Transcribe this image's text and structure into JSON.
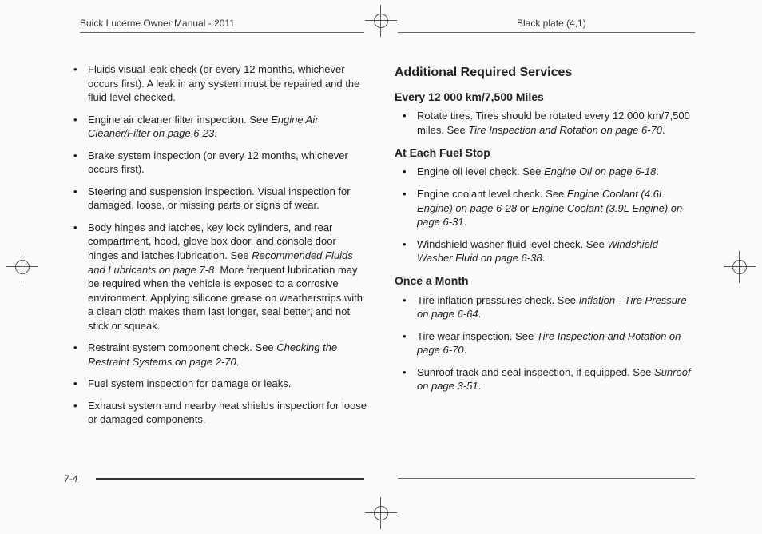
{
  "header": {
    "left": "Buick Lucerne Owner Manual - 2011",
    "right": "Black plate (4,1)"
  },
  "page_number": "7-4",
  "left_column": {
    "items": [
      {
        "segments": [
          {
            "t": "Fluids visual leak check (or every 12 months, whichever occurs first). A leak in any system must be repaired and the fluid level checked."
          }
        ]
      },
      {
        "segments": [
          {
            "t": "Engine air cleaner filter inspection. See "
          },
          {
            "t": "Engine Air Cleaner/Filter on page 6‑23",
            "i": true
          },
          {
            "t": "."
          }
        ]
      },
      {
        "segments": [
          {
            "t": "Brake system inspection (or every 12 months, whichever occurs first)."
          }
        ]
      },
      {
        "segments": [
          {
            "t": "Steering and suspension inspection. Visual inspection for damaged, loose, or missing parts or signs of wear."
          }
        ]
      },
      {
        "segments": [
          {
            "t": "Body hinges and latches, key lock cylinders, and rear compartment, hood, glove box door, and console door hinges and latches lubrication. See "
          },
          {
            "t": "Recommended Fluids and Lubricants on page 7‑8",
            "i": true
          },
          {
            "t": ". More frequent lubrication may be required when the vehicle is exposed to a corrosive environment. Applying silicone grease on weatherstrips with a clean cloth makes them last longer, seal better, and not stick or squeak."
          }
        ]
      },
      {
        "segments": [
          {
            "t": "Restraint system component check. See "
          },
          {
            "t": "Checking the Restraint Systems on page 2‑70",
            "i": true
          },
          {
            "t": "."
          }
        ]
      },
      {
        "segments": [
          {
            "t": "Fuel system inspection for damage or leaks."
          }
        ]
      },
      {
        "segments": [
          {
            "t": "Exhaust system and nearby heat shields inspection for loose or damaged components."
          }
        ]
      }
    ]
  },
  "right_column": {
    "heading": "Additional Required Services",
    "sections": [
      {
        "title": "Every 12 000 km/7,500 Miles",
        "items": [
          {
            "segments": [
              {
                "t": "Rotate tires. Tires should be rotated every 12 000 km/7,500 miles. See "
              },
              {
                "t": "Tire Inspection and Rotation on page 6‑70",
                "i": true
              },
              {
                "t": "."
              }
            ]
          }
        ]
      },
      {
        "title": "At Each Fuel Stop",
        "items": [
          {
            "segments": [
              {
                "t": "Engine oil level check. See "
              },
              {
                "t": "Engine Oil on page 6‑18",
                "i": true
              },
              {
                "t": "."
              }
            ]
          },
          {
            "segments": [
              {
                "t": "Engine coolant level check. See "
              },
              {
                "t": "Engine Coolant (4.6L Engine) on page 6‑28",
                "i": true
              },
              {
                "t": " or "
              },
              {
                "t": "Engine Coolant (3.9L Engine) on page 6‑31",
                "i": true
              },
              {
                "t": "."
              }
            ]
          },
          {
            "segments": [
              {
                "t": "Windshield washer fluid level check. See "
              },
              {
                "t": "Windshield Washer Fluid on page 6‑38",
                "i": true
              },
              {
                "t": "."
              }
            ]
          }
        ]
      },
      {
        "title": "Once a Month",
        "items": [
          {
            "segments": [
              {
                "t": "Tire inflation pressures check. See "
              },
              {
                "t": "Inflation - Tire Pressure on page 6‑64",
                "i": true
              },
              {
                "t": "."
              }
            ]
          },
          {
            "segments": [
              {
                "t": "Tire wear inspection. See "
              },
              {
                "t": "Tire Inspection and Rotation on page 6‑70",
                "i": true
              },
              {
                "t": "."
              }
            ]
          },
          {
            "segments": [
              {
                "t": "Sunroof track and seal inspection, if equipped. See "
              },
              {
                "t": "Sunroof on page 3‑51",
                "i": true
              },
              {
                "t": "."
              }
            ]
          }
        ]
      }
    ]
  }
}
